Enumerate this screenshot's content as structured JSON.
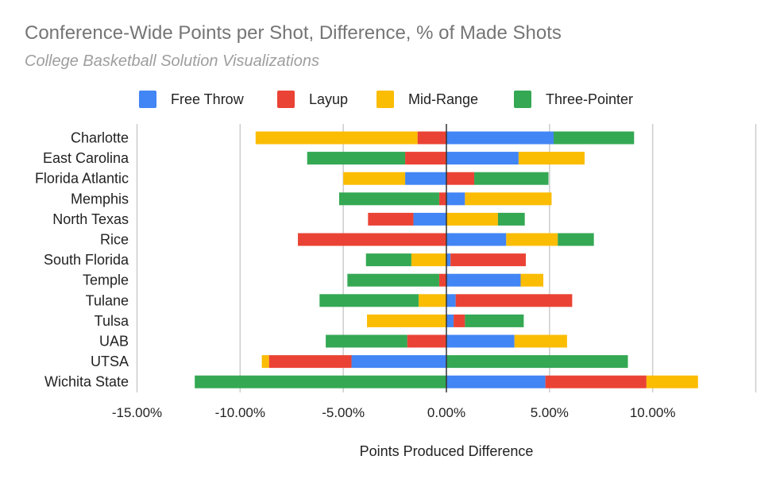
{
  "chart_data": {
    "type": "bar",
    "orientation": "horizontal",
    "stacked": true,
    "title": "Conference-Wide Points per Shot, Difference, % of Made Shots",
    "subtitle": "College Basketball Solution Visualizations",
    "xlabel": "Points Produced Difference",
    "ylabel": "",
    "xlim": [
      -15,
      15
    ],
    "x_ticks": [
      -15,
      -10,
      -5,
      0,
      5,
      10
    ],
    "tick_labels": [
      "-15.00%",
      "-10.00%",
      "-5.00%",
      "0.00%",
      "5.00%",
      "10.00%"
    ],
    "grid": true,
    "legend_position": "top",
    "categories": [
      "Charlotte",
      "East Carolina",
      "Florida Atlantic",
      "Memphis",
      "North Texas",
      "Rice",
      "South Florida",
      "Temple",
      "Tulane",
      "Tulsa",
      "UAB",
      "UTSA",
      "Wichita State"
    ],
    "series": [
      {
        "name": "Free Throw",
        "color": "#4285f4",
        "values": [
          5.2,
          3.5,
          -2.0,
          0.9,
          -1.6,
          2.9,
          0.2,
          3.6,
          0.45,
          0.35,
          3.3,
          -4.6,
          4.8
        ]
      },
      {
        "name": "Layup",
        "color": "#ea4335",
        "values": [
          -1.4,
          -2.0,
          1.35,
          -0.35,
          -2.2,
          -7.2,
          3.65,
          -0.35,
          5.65,
          0.55,
          -1.9,
          -4.0,
          4.9
        ]
      },
      {
        "name": "Mid-Range",
        "color": "#fbbc04",
        "values": [
          -7.85,
          3.2,
          -3.0,
          4.2,
          2.5,
          2.5,
          -1.7,
          1.1,
          -1.35,
          -3.85,
          2.55,
          -0.35,
          2.5
        ]
      },
      {
        "name": "Three-Pointer",
        "color": "#34a853",
        "values": [
          3.9,
          -4.75,
          3.6,
          -4.85,
          1.3,
          1.75,
          -2.2,
          -4.45,
          -4.8,
          2.85,
          -3.95,
          8.8,
          -12.2
        ]
      }
    ]
  }
}
